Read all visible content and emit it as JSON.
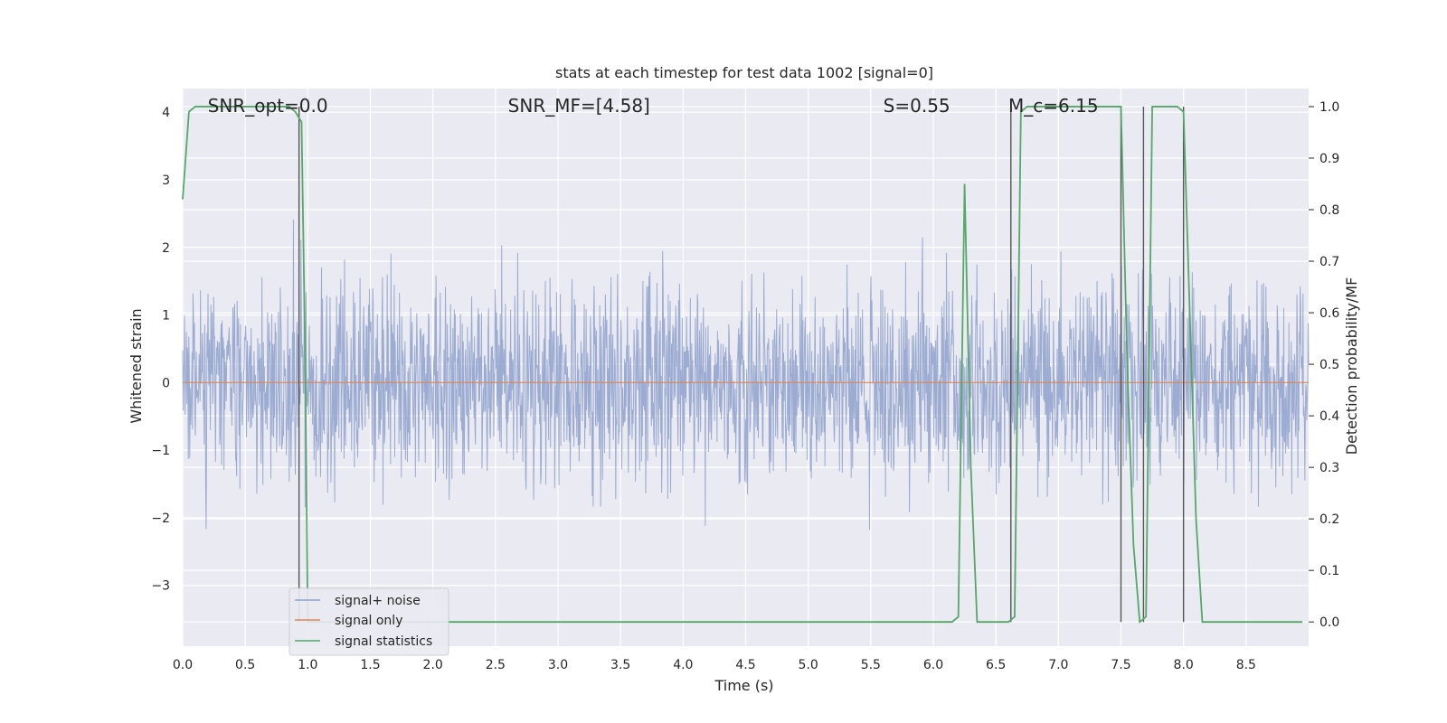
{
  "chart_data": {
    "type": "line",
    "title": "stats at each timestep for test data 1002 [signal=0]",
    "xlabel": "Time (s)",
    "ylabel": "Whitened strain",
    "ylabel_right": "Detection probability/MF",
    "xlim": [
      0,
      9.0
    ],
    "ylim": [
      -3.9,
      4.35
    ],
    "ylim_right": [
      -0.047,
      1.035
    ],
    "x_ticks": [
      "0.0",
      "0.5",
      "1.0",
      "1.5",
      "2.0",
      "2.5",
      "3.0",
      "3.5",
      "4.0",
      "4.5",
      "5.0",
      "5.5",
      "6.0",
      "6.5",
      "7.0",
      "7.5",
      "8.0",
      "8.5"
    ],
    "x_tick_values": [
      0,
      0.5,
      1.0,
      1.5,
      2.0,
      2.5,
      3.0,
      3.5,
      4.0,
      4.5,
      5.0,
      5.5,
      6.0,
      6.5,
      7.0,
      7.5,
      8.0,
      8.5
    ],
    "y_ticks": [
      "4",
      "3",
      "2",
      "1",
      "0",
      "−1",
      "−2",
      "−3"
    ],
    "y_tick_values": [
      4,
      3,
      2,
      1,
      0,
      -1,
      -2,
      -3
    ],
    "y_right_ticks": [
      "1.0",
      "0.9",
      "0.8",
      "0.7",
      "0.6",
      "0.5",
      "0.4",
      "0.3",
      "0.2",
      "0.1",
      "0.0"
    ],
    "y_right_tick_values": [
      1.0,
      0.9,
      0.8,
      0.7,
      0.6,
      0.5,
      0.4,
      0.3,
      0.2,
      0.1,
      0.0
    ],
    "grid": true,
    "legend_position": "lower-left",
    "annotations": [
      {
        "x": 0.2,
        "text": "SNR_opt=0.0"
      },
      {
        "x": 2.6,
        "text": "SNR_MF=[4.58]"
      },
      {
        "x": 5.6,
        "text": "S=0.55"
      },
      {
        "x": 6.6,
        "text": "M_c=6.15"
      }
    ],
    "series": [
      {
        "name": "signal+ noise",
        "color": "#8da0cb",
        "noise_sigma": 1.0,
        "x_range": [
          0,
          9.0
        ]
      },
      {
        "name": "signal only",
        "color": "#dd8452",
        "x": [
          0,
          9.0
        ],
        "y": [
          0,
          0
        ]
      },
      {
        "name": "signal statistics",
        "color": "#55a868",
        "axis": "right",
        "x": [
          0,
          0.05,
          0.1,
          0.85,
          0.9,
          0.95,
          0.98,
          1.0,
          6.15,
          6.2,
          6.25,
          6.3,
          6.35,
          6.6,
          6.65,
          6.7,
          6.75,
          7.5,
          7.55,
          7.6,
          7.65,
          7.7,
          7.75,
          7.8,
          7.95,
          8.0,
          8.05,
          8.1,
          8.15,
          8.95
        ],
        "y": [
          0.82,
          0.99,
          1.0,
          1.0,
          0.99,
          0.97,
          0.5,
          0.0,
          0.0,
          0.01,
          0.85,
          0.3,
          0.0,
          0.0,
          0.01,
          0.99,
          1.0,
          1.0,
          0.5,
          0.15,
          0.0,
          0.01,
          1.0,
          1.0,
          1.0,
          0.99,
          0.6,
          0.2,
          0.0,
          0.0
        ]
      }
    ],
    "vertical_lines_x": [
      0.93,
      6.62,
      7.5,
      7.68,
      8.0
    ]
  }
}
